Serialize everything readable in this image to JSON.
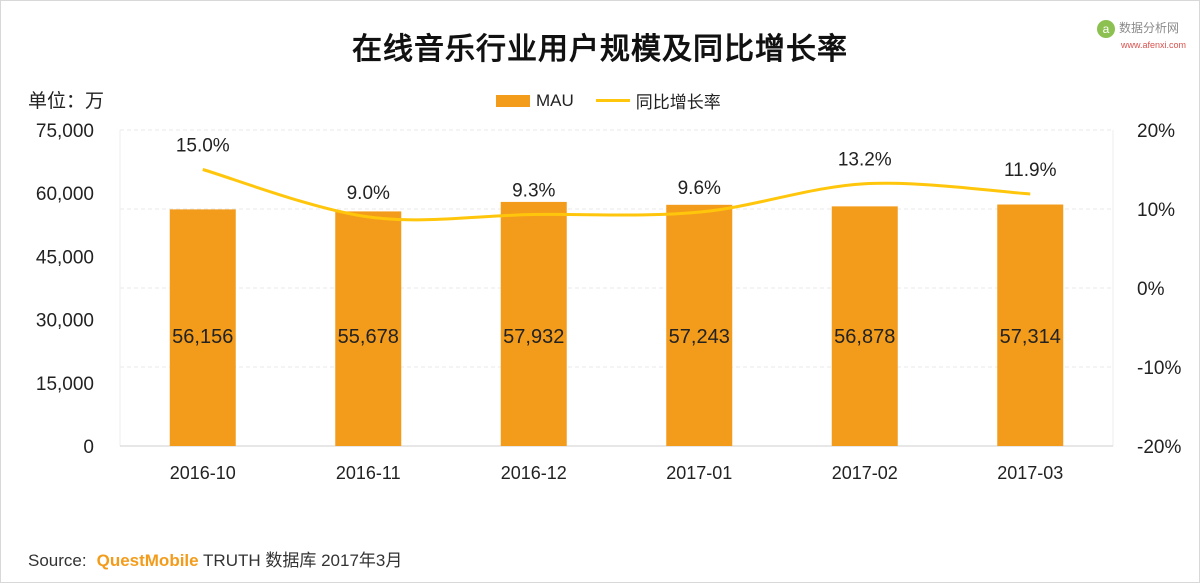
{
  "watermark": {
    "name": "数据分析网",
    "domain": "www.afenxi.com"
  },
  "footer": {
    "source_label": "Source:",
    "brand": "QuestMobile",
    "rest": "TRUTH 数据库 2017年3月"
  },
  "colors": {
    "bar": "#f39c1b",
    "line": "#ffc60b",
    "grid": "#e8e8e8"
  },
  "chart_data": {
    "type": "bar",
    "title": "在线音乐行业用户规模及同比增长率",
    "unit_label": "单位：万",
    "categories": [
      "2016-10",
      "2016-11",
      "2016-12",
      "2017-01",
      "2017-02",
      "2017-03"
    ],
    "series": [
      {
        "name": "MAU",
        "type": "bar",
        "axis": "left",
        "values": [
          56156,
          55678,
          57932,
          57243,
          56878,
          57314
        ],
        "labels": [
          "56,156",
          "55,678",
          "57,932",
          "57,243",
          "56,878",
          "57,314"
        ]
      },
      {
        "name": "同比增长率",
        "type": "line",
        "axis": "right",
        "values": [
          15.0,
          9.0,
          9.3,
          9.6,
          13.2,
          11.9
        ],
        "labels": [
          "15.0%",
          "9.0%",
          "9.3%",
          "9.6%",
          "13.2%",
          "11.9%"
        ]
      }
    ],
    "y_left": {
      "ylim": [
        0,
        75000
      ],
      "ticks": [
        0,
        15000,
        30000,
        45000,
        60000,
        75000
      ],
      "tick_labels": [
        "0",
        "15,000",
        "30,000",
        "45,000",
        "60,000",
        "75,000"
      ]
    },
    "y_right": {
      "ylim": [
        -20,
        20
      ],
      "ticks": [
        -20,
        -10,
        0,
        10,
        20
      ],
      "tick_labels": [
        "-20%",
        "-10%",
        "0%",
        "10%",
        "20%"
      ]
    },
    "grid": true,
    "legend_position": "top-center"
  }
}
